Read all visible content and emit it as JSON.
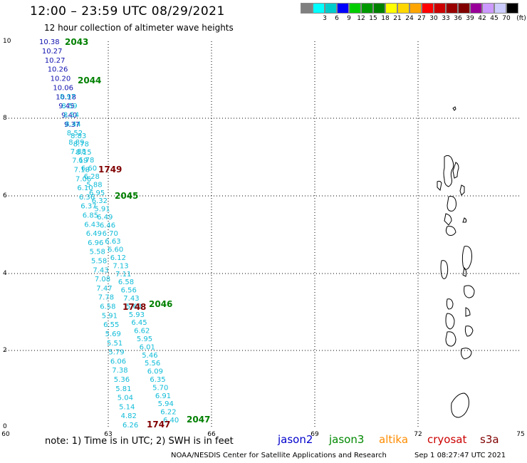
{
  "header": {
    "title": "12:00 – 23:59 UTC 08/29/2021",
    "subtitle": "12 hour collection of altimeter wave heights"
  },
  "colorbar": {
    "colors": [
      "#808080",
      "#00ffff",
      "#00cccc",
      "#0000ff",
      "#00cc00",
      "#009900",
      "#008000",
      "#ffff00",
      "#ffd700",
      "#ffa500",
      "#ff0000",
      "#cc0000",
      "#990000",
      "#800000",
      "#990099",
      "#cc99ff",
      "#ccccff",
      "#000000"
    ],
    "labels": [
      "3",
      "6",
      "9",
      "12",
      "15",
      "18",
      "21",
      "24",
      "27",
      "30",
      "33",
      "36",
      "39",
      "42",
      "45",
      "70"
    ],
    "unit": "(ft)"
  },
  "axes": {
    "x_ticks": [
      "60",
      "63",
      "66",
      "69",
      "72",
      "75"
    ],
    "y_ticks": [
      "10",
      "8",
      "6",
      "4",
      "2",
      "0"
    ]
  },
  "track_labels": {
    "passes": [
      {
        "text": "2043",
        "color": "#008000"
      },
      {
        "text": "2044",
        "color": "#008000"
      },
      {
        "text": "1749",
        "color": "#800000"
      },
      {
        "text": "2045",
        "color": "#008000"
      },
      {
        "text": "1748",
        "color": "#800000"
      },
      {
        "text": "2046",
        "color": "#008000"
      },
      {
        "text": "2047",
        "color": "#008000"
      },
      {
        "text": "1747",
        "color": "#800000"
      }
    ]
  },
  "readings": {
    "dark_blue": [
      "10.38",
      "10.27",
      "10.27",
      "10.26",
      "10.20",
      "10.06",
      "10.18",
      "9.45",
      "9.40",
      "9.37"
    ],
    "cyan_left": [
      "8.97",
      "8.59",
      "8.54",
      "8.44",
      "8.52",
      "8.89",
      "7.88",
      "7.19",
      "7.18",
      "7.06",
      "6.10",
      "6.36",
      "6.37",
      "6.85",
      "6.43",
      "6.49",
      "6.96",
      "5.58",
      "5.58",
      "7.43",
      "7.08",
      "7.47",
      "7.78",
      "6.58",
      "5.91",
      "6.55",
      "5.69",
      "5.51",
      "5.79",
      "6.06",
      "7.38",
      "5.36",
      "5.81",
      "5.04",
      "5.14",
      "4.82",
      "6.26"
    ],
    "cyan_right": [
      "8.83",
      "8.78",
      "8.15",
      "6.78",
      "6.60",
      "6.28",
      "5.88",
      "6.95",
      "6.32",
      "5.91",
      "6.49",
      "6.46",
      "6.70",
      "6.63",
      "6.60",
      "6.12",
      "7.13",
      "7.11",
      "6.58",
      "6.56",
      "7.43",
      "5.68",
      "5.93",
      "6.45",
      "6.62",
      "5.95",
      "6.01",
      "5.46",
      "5.56",
      "6.09",
      "6.35",
      "5.70",
      "6.91",
      "5.94",
      "6.22",
      "6.40"
    ]
  },
  "legend": {
    "note": "note: 1) Time is in UTC; 2) SWH is in feet",
    "satellites": [
      "jason2",
      "jason3",
      "altika",
      "cryosat",
      "s3a"
    ]
  },
  "footer": {
    "credit": "NOAA/NESDIS Center for Satellite Applications and Research",
    "timestamp": "Sep  1 08:27:47 UTC 2021"
  }
}
